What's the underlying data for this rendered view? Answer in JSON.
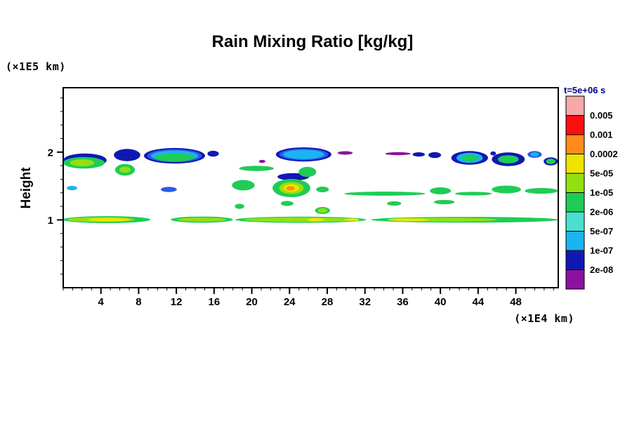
{
  "title": "Rain Mixing Ratio [kg/kg]",
  "y_axis_unit": "(×1E5 km)",
  "x_axis_unit": "(×1E4 km)",
  "y_axis_label": "Height",
  "colorbar_header": "t=5e+06 s",
  "chart_data": {
    "type": "contour",
    "title": "Rain Mixing Ratio [kg/kg]",
    "xlabel": "(×1E4 km)",
    "ylabel": "Height (×1E5 km)",
    "xlim": [
      0,
      52.5
    ],
    "ylim": [
      0,
      2.95
    ],
    "x_major_ticks": [
      4,
      8,
      12,
      16,
      20,
      24,
      28,
      32,
      36,
      40,
      44,
      48
    ],
    "x_minor_step": 1,
    "y_major_ticks": [
      1,
      2
    ],
    "y_minor_step": 0.2,
    "time_label": "t=5e+06 s",
    "levels": [
      2e-08,
      1e-07,
      5e-07,
      2e-06,
      1e-05,
      5e-05,
      0.0002,
      0.001,
      0.005
    ],
    "colorbar": {
      "labels": [
        "0.005",
        "0.001",
        "0.0002",
        "5e-05",
        "1e-05",
        "2e-06",
        "5e-07",
        "1e-07",
        "2e-08"
      ],
      "colors": [
        "#f5a9a9",
        "#fb1010",
        "#ff8c1a",
        "#efe400",
        "#93e011",
        "#1fcc55",
        "#4ae0cf",
        "#1ab4f0",
        "#1018b4",
        "#8c11a0"
      ]
    },
    "palette": {
      "navy": "#1018b4",
      "blue": "#2a5ae6",
      "cyan": "#1ab4f0",
      "aqua": "#4ae0cf",
      "green": "#1fcc55",
      "chartreuse": "#93e011",
      "yellow": "#efe400",
      "orange": "#ff8c1a",
      "purple": "#8c11a0"
    },
    "blobs": [
      [
        2.3,
        1.88,
        2.3,
        0.1,
        "navy"
      ],
      [
        6.78,
        1.956,
        1.4,
        0.09,
        "navy"
      ],
      [
        11.8,
        1.946,
        3.24,
        0.115,
        "navy"
      ],
      [
        15.9,
        1.977,
        0.6,
        0.045,
        "navy"
      ],
      [
        25.5,
        1.966,
        2.94,
        0.105,
        "navy"
      ],
      [
        37.7,
        1.966,
        0.65,
        0.032,
        "navy"
      ],
      [
        39.4,
        1.956,
        0.67,
        0.045,
        "navy"
      ],
      [
        43.1,
        1.915,
        1.94,
        0.1,
        "navy"
      ],
      [
        47.2,
        1.894,
        1.75,
        0.1,
        "navy"
      ],
      [
        51.7,
        1.863,
        0.75,
        0.06,
        "navy"
      ],
      [
        24.4,
        1.635,
        1.68,
        0.055,
        "navy"
      ],
      [
        45.6,
        1.98,
        0.3,
        0.03,
        "navy"
      ],
      [
        11.2,
        1.449,
        0.85,
        0.038,
        "blue"
      ],
      [
        11.8,
        1.946,
        2.9,
        0.095,
        "blue"
      ],
      [
        25.5,
        1.966,
        2.6,
        0.085,
        "blue"
      ],
      [
        50.0,
        1.966,
        0.75,
        0.05,
        "blue"
      ],
      [
        11.8,
        1.946,
        2.5,
        0.078,
        "cyan"
      ],
      [
        25.5,
        1.966,
        2.2,
        0.068,
        "cyan"
      ],
      [
        0.93,
        1.47,
        0.55,
        0.032,
        "cyan"
      ],
      [
        43.1,
        1.915,
        1.4,
        0.075,
        "cyan"
      ],
      [
        50.0,
        1.966,
        0.45,
        0.032,
        "cyan"
      ],
      [
        2.2,
        1.842,
        2.2,
        0.085,
        "green"
      ],
      [
        6.55,
        1.739,
        1.05,
        0.085,
        "green"
      ],
      [
        11.8,
        1.92,
        2.1,
        0.06,
        "green"
      ],
      [
        20.5,
        1.76,
        1.85,
        0.038,
        "green"
      ],
      [
        25.9,
        1.708,
        0.93,
        0.075,
        "green"
      ],
      [
        19.1,
        1.511,
        1.2,
        0.078,
        "green"
      ],
      [
        24.2,
        1.47,
        2.0,
        0.135,
        "green"
      ],
      [
        27.5,
        1.449,
        0.67,
        0.042,
        "green"
      ],
      [
        34.1,
        1.387,
        4.3,
        0.03,
        "green"
      ],
      [
        40.0,
        1.428,
        1.12,
        0.052,
        "green"
      ],
      [
        43.5,
        1.387,
        1.94,
        0.027,
        "green"
      ],
      [
        47.0,
        1.449,
        1.56,
        0.057,
        "green"
      ],
      [
        50.7,
        1.428,
        1.75,
        0.042,
        "green"
      ],
      [
        18.7,
        1.2,
        0.5,
        0.037,
        "green"
      ],
      [
        23.75,
        1.242,
        0.67,
        0.037,
        "green"
      ],
      [
        27.5,
        1.139,
        0.8,
        0.052,
        "green"
      ],
      [
        35.1,
        1.242,
        0.75,
        0.032,
        "green"
      ],
      [
        40.4,
        1.263,
        1.1,
        0.032,
        "green"
      ],
      [
        43.1,
        1.915,
        0.9,
        0.05,
        "green"
      ],
      [
        47.2,
        1.894,
        1.1,
        0.06,
        "green"
      ],
      [
        51.7,
        1.863,
        0.5,
        0.04,
        "green"
      ],
      [
        4.6,
        1.004,
        4.65,
        0.052,
        "green"
      ],
      [
        14.7,
        1.004,
        3.3,
        0.046,
        "green"
      ],
      [
        25.2,
        1.002,
        6.95,
        0.046,
        "green"
      ],
      [
        42.6,
        1.002,
        9.95,
        0.042,
        "green"
      ],
      [
        2.0,
        1.842,
        1.3,
        0.052,
        "chartreuse"
      ],
      [
        6.55,
        1.739,
        0.6,
        0.047,
        "chartreuse"
      ],
      [
        24.2,
        1.47,
        1.3,
        0.088,
        "chartreuse"
      ],
      [
        27.5,
        1.139,
        0.5,
        0.032,
        "chartreuse"
      ],
      [
        4.0,
        1.004,
        3.6,
        0.036,
        "chartreuse"
      ],
      [
        14.7,
        1.004,
        2.6,
        0.03,
        "chartreuse"
      ],
      [
        25.2,
        1.002,
        6.0,
        0.033,
        "chartreuse"
      ],
      [
        40.5,
        1.002,
        5.5,
        0.028,
        "chartreuse"
      ],
      [
        4.84,
        1.004,
        2.2,
        0.026,
        "yellow"
      ],
      [
        26.8,
        1.002,
        0.9,
        0.023,
        "yellow"
      ],
      [
        30.6,
        1.002,
        0.8,
        0.021,
        "yellow"
      ],
      [
        36.6,
        1.002,
        2.2,
        0.023,
        "yellow"
      ],
      [
        24.2,
        1.47,
        0.85,
        0.057,
        "yellow"
      ],
      [
        24.1,
        1.465,
        0.45,
        0.032,
        "orange"
      ],
      [
        29.9,
        1.987,
        0.8,
        0.026,
        "purple"
      ],
      [
        35.5,
        1.977,
        1.35,
        0.023,
        "purple"
      ],
      [
        21.1,
        1.863,
        0.35,
        0.022,
        "purple"
      ]
    ]
  }
}
